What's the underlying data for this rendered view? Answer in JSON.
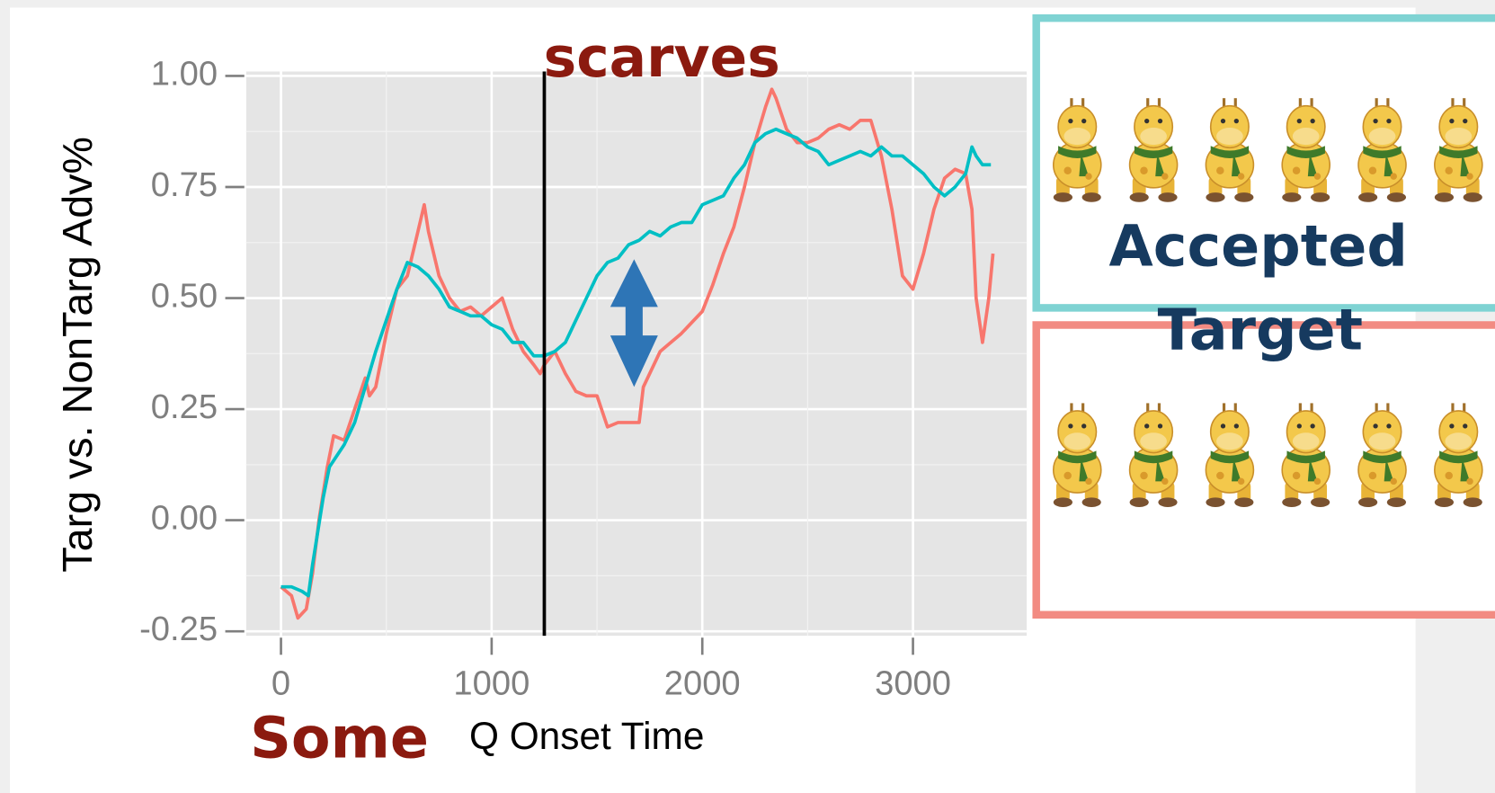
{
  "chart_data": {
    "type": "line",
    "xlabel": "Q Onset Time",
    "ylabel": "Targ vs. NonTarg Adv%",
    "annotations": [
      "scarves",
      "Some",
      "Accepted",
      "Target"
    ],
    "vline": 1250,
    "xlim": [
      -165,
      3540
    ],
    "ylim": [
      -0.26,
      1.01
    ],
    "xticks": [
      0,
      1000,
      2000,
      3000
    ],
    "yticks": [
      {
        "value": -0.25,
        "label": "-0.25"
      },
      {
        "value": 0,
        "label": "0.00"
      },
      {
        "value": 0.25,
        "label": "0.25"
      },
      {
        "value": 0.5,
        "label": "0.50"
      },
      {
        "value": 0.75,
        "label": "0.75"
      },
      {
        "value": 1,
        "label": "1.00"
      }
    ],
    "grid": true,
    "series": [
      {
        "color": "#f8766d",
        "x": [
          0,
          50,
          80,
          120,
          150,
          180,
          220,
          250,
          300,
          350,
          400,
          420,
          450,
          500,
          550,
          600,
          650,
          680,
          700,
          750,
          800,
          850,
          900,
          950,
          1000,
          1050,
          1100,
          1150,
          1200,
          1230,
          1250,
          1300,
          1350,
          1400,
          1450,
          1500,
          1550,
          1600,
          1650,
          1700,
          1720,
          1800,
          1900,
          2000,
          2050,
          2100,
          2150,
          2200,
          2250,
          2300,
          2330,
          2350,
          2400,
          2450,
          2500,
          2550,
          2600,
          2650,
          2700,
          2750,
          2800,
          2850,
          2900,
          2950,
          3000,
          3050,
          3100,
          3150,
          3200,
          3250,
          3280,
          3300,
          3330,
          3360,
          3380
        ],
        "values": [
          -0.15,
          -0.17,
          -0.22,
          -0.2,
          -0.12,
          0.0,
          0.12,
          0.19,
          0.18,
          0.25,
          0.32,
          0.28,
          0.3,
          0.42,
          0.52,
          0.55,
          0.65,
          0.71,
          0.65,
          0.55,
          0.5,
          0.47,
          0.48,
          0.46,
          0.48,
          0.5,
          0.43,
          0.38,
          0.35,
          0.33,
          0.35,
          0.38,
          0.33,
          0.29,
          0.28,
          0.28,
          0.21,
          0.22,
          0.22,
          0.22,
          0.3,
          0.38,
          0.42,
          0.47,
          0.53,
          0.6,
          0.66,
          0.75,
          0.85,
          0.93,
          0.97,
          0.95,
          0.88,
          0.85,
          0.85,
          0.86,
          0.88,
          0.89,
          0.88,
          0.9,
          0.9,
          0.82,
          0.7,
          0.55,
          0.52,
          0.6,
          0.7,
          0.77,
          0.79,
          0.78,
          0.7,
          0.5,
          0.4,
          0.5,
          0.6
        ]
      },
      {
        "color": "#00bfc4",
        "x": [
          0,
          50,
          100,
          130,
          150,
          200,
          230,
          300,
          350,
          400,
          450,
          500,
          550,
          600,
          650,
          700,
          750,
          800,
          850,
          900,
          950,
          1000,
          1050,
          1100,
          1150,
          1200,
          1250,
          1300,
          1350,
          1400,
          1450,
          1500,
          1550,
          1600,
          1650,
          1700,
          1750,
          1800,
          1850,
          1900,
          1950,
          2000,
          2050,
          2100,
          2150,
          2200,
          2250,
          2300,
          2350,
          2400,
          2450,
          2500,
          2550,
          2600,
          2650,
          2700,
          2750,
          2800,
          2850,
          2900,
          2950,
          3000,
          3050,
          3100,
          3150,
          3200,
          3250,
          3280,
          3300,
          3330,
          3370
        ],
        "values": [
          -0.15,
          -0.15,
          -0.16,
          -0.17,
          -0.1,
          0.05,
          0.12,
          0.17,
          0.22,
          0.3,
          0.38,
          0.45,
          0.52,
          0.58,
          0.57,
          0.55,
          0.52,
          0.48,
          0.47,
          0.46,
          0.46,
          0.44,
          0.43,
          0.4,
          0.4,
          0.37,
          0.37,
          0.38,
          0.4,
          0.45,
          0.5,
          0.55,
          0.58,
          0.59,
          0.62,
          0.63,
          0.65,
          0.64,
          0.66,
          0.67,
          0.67,
          0.71,
          0.72,
          0.73,
          0.77,
          0.8,
          0.85,
          0.87,
          0.88,
          0.87,
          0.86,
          0.84,
          0.83,
          0.8,
          0.81,
          0.82,
          0.83,
          0.82,
          0.84,
          0.82,
          0.82,
          0.8,
          0.78,
          0.75,
          0.73,
          0.75,
          0.78,
          0.84,
          0.82,
          0.8,
          0.8
        ]
      }
    ]
  }
}
